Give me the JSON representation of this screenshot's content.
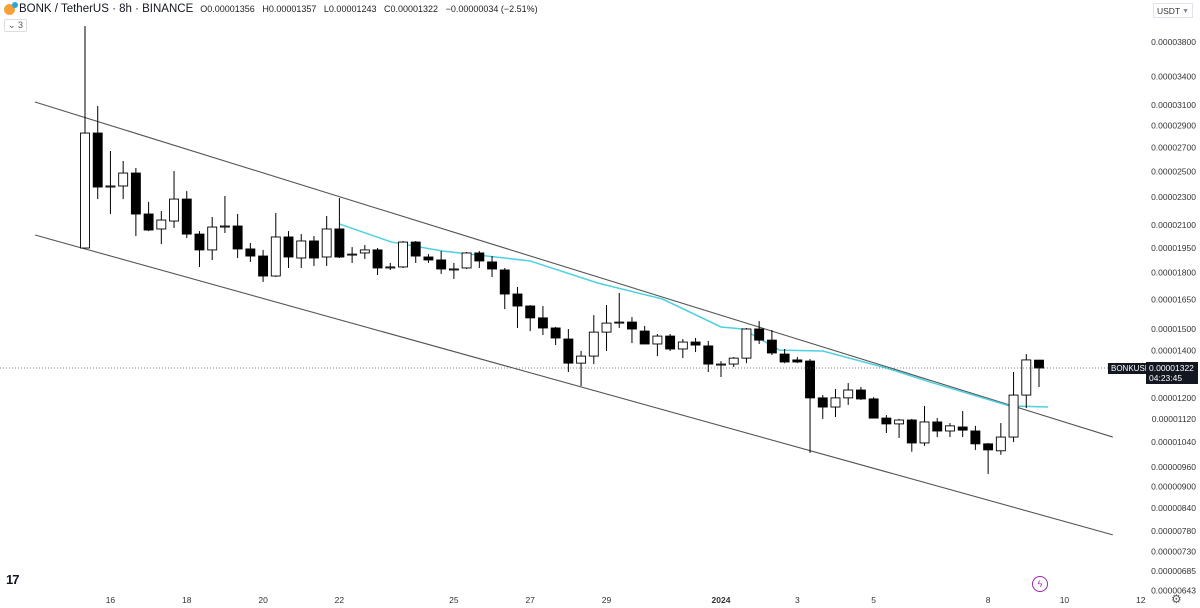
{
  "header": {
    "symbol": "BONK / TetherUS · 8h · BINANCE",
    "open": "O0.00001356",
    "high": "H0.00001357",
    "low": "L0.00001243",
    "close": "C0.00001322",
    "change": "−0.00000034 (−2.51%)",
    "indicators_collapse": "⌄ 3"
  },
  "currency_selector": {
    "value": "USDT"
  },
  "current_price": {
    "symbol": "BONKUSDT",
    "price": "0.00001322",
    "countdown": "04:23:45"
  },
  "icons": {
    "tv_logo": "tradingview-logo",
    "bolt": "lightning-icon",
    "settings": "gear-icon"
  },
  "colors": {
    "up": "#ffffff",
    "down": "#000000",
    "outline": "#000000",
    "ma": "#4dd0e1",
    "trendline": "#555555",
    "bolt": "#9c27b0"
  },
  "chart_data": {
    "type": "candlestick",
    "price_unit": "1e-8 USDT",
    "y_scale": "log",
    "ylim": [
      640,
      4100
    ],
    "candles_ohlc": [
      [
        1950,
        4003,
        1950,
        2830
      ],
      [
        2830,
        3089,
        2285,
        2376
      ],
      [
        2376,
        2670,
        2177,
        2384
      ],
      [
        2384,
        2585,
        2285,
        2486
      ],
      [
        2486,
        2527,
        2027,
        2177
      ],
      [
        2177,
        2264,
        2060,
        2067
      ],
      [
        2074,
        2198,
        1975,
        2135
      ],
      [
        2128,
        2502,
        2081,
        2285
      ],
      [
        2285,
        2345,
        2014,
        2040
      ],
      [
        2040,
        2060,
        1834,
        1938
      ],
      [
        1938,
        2156,
        1876,
        2087
      ],
      [
        2087,
        2308,
        2047,
        2094
      ],
      [
        2094,
        2177,
        1888,
        1944
      ],
      [
        1944,
        1982,
        1864,
        1900
      ],
      [
        1900,
        1938,
        1747,
        1781
      ],
      [
        1781,
        2184,
        1775,
        2021
      ],
      [
        2021,
        2060,
        1828,
        1894
      ],
      [
        1888,
        2040,
        1828,
        1995
      ],
      [
        1995,
        2027,
        1840,
        1888
      ],
      [
        1894,
        2163,
        1840,
        2074
      ],
      [
        2074,
        2293,
        1888,
        1894
      ],
      [
        1906,
        1956,
        1858,
        1912
      ],
      [
        1919,
        1969,
        1882,
        1938
      ],
      [
        1938,
        1950,
        1787,
        1828
      ],
      [
        1828,
        1858,
        1816,
        1834
      ],
      [
        1834,
        1995,
        1828,
        1988
      ],
      [
        1988,
        1995,
        1858,
        1900
      ],
      [
        1894,
        1912,
        1858,
        1876
      ],
      [
        1876,
        1931,
        1793,
        1822
      ],
      [
        1822,
        1858,
        1764,
        1822
      ],
      [
        1828,
        1925,
        1822,
        1919
      ],
      [
        1919,
        1931,
        1828,
        1870
      ],
      [
        1864,
        1900,
        1775,
        1822
      ],
      [
        1816,
        1828,
        1600,
        1680
      ],
      [
        1680,
        1719,
        1505,
        1616
      ],
      [
        1616,
        1621,
        1490,
        1555
      ],
      [
        1555,
        1616,
        1471,
        1505
      ],
      [
        1505,
        1510,
        1424,
        1457
      ],
      [
        1452,
        1500,
        1305,
        1343
      ],
      [
        1343,
        1397,
        1247,
        1374
      ],
      [
        1374,
        1569,
        1339,
        1485
      ],
      [
        1485,
        1621,
        1397,
        1529
      ],
      [
        1529,
        1686,
        1505,
        1534
      ],
      [
        1534,
        1559,
        1433,
        1500
      ],
      [
        1490,
        1515,
        1429,
        1429
      ],
      [
        1429,
        1476,
        1374,
        1466
      ],
      [
        1466,
        1476,
        1397,
        1406
      ],
      [
        1406,
        1452,
        1365,
        1438
      ],
      [
        1438,
        1457,
        1392,
        1424
      ],
      [
        1420,
        1443,
        1305,
        1339
      ],
      [
        1339,
        1352,
        1284,
        1339
      ],
      [
        1339,
        1370,
        1326,
        1365
      ],
      [
        1365,
        1505,
        1343,
        1500
      ],
      [
        1500,
        1539,
        1429,
        1447
      ],
      [
        1447,
        1495,
        1379,
        1388
      ],
      [
        1383,
        1406,
        1343,
        1348
      ],
      [
        1357,
        1370,
        1343,
        1348
      ],
      [
        1352,
        1361,
        1004,
        1200
      ],
      [
        1200,
        1211,
        1121,
        1165
      ],
      [
        1165,
        1235,
        1128,
        1200
      ],
      [
        1200,
        1259,
        1173,
        1231
      ],
      [
        1231,
        1243,
        1192,
        1196
      ],
      [
        1196,
        1203,
        1124,
        1124
      ],
      [
        1124,
        1135,
        1071,
        1103
      ],
      [
        1103,
        1121,
        1054,
        1117
      ],
      [
        1117,
        1121,
        1008,
        1037
      ],
      [
        1037,
        1169,
        1027,
        1110
      ],
      [
        1110,
        1124,
        1057,
        1078
      ],
      [
        1078,
        1106,
        1057,
        1096
      ],
      [
        1092,
        1150,
        1057,
        1081
      ],
      [
        1078,
        1096,
        1014,
        1034
      ],
      [
        1034,
        1037,
        938,
        1014
      ],
      [
        1011,
        1106,
        998,
        1057
      ],
      [
        1057,
        1305,
        1040,
        1211
      ],
      [
        1211,
        1383,
        1161,
        1357
      ],
      [
        1356,
        1357,
        1243,
        1322
      ]
    ],
    "moving_average": [
      [
        21.0,
        2108
      ],
      [
        25.1,
        1988
      ],
      [
        29.1,
        1931
      ],
      [
        36.0,
        1870
      ],
      [
        41.3,
        1741
      ],
      [
        46.4,
        1653
      ],
      [
        51.0,
        1510
      ],
      [
        52.7,
        1500
      ],
      [
        55.6,
        1401
      ],
      [
        59.0,
        1397
      ],
      [
        64.0,
        1322
      ],
      [
        67.7,
        1259
      ],
      [
        73.7,
        1169
      ],
      [
        76.7,
        1165
      ]
    ],
    "trendlines": [
      {
        "name": "upper-channel",
        "points": [
          [
            -2.93,
            3129
          ],
          [
            81.8,
            1057
          ]
        ]
      },
      {
        "name": "lower-channel",
        "points": [
          [
            -2.93,
            2034
          ],
          [
            81.8,
            770
          ]
        ]
      }
    ],
    "y_ticks": [
      "0.00003800",
      "0.00003400",
      "0.00003100",
      "0.00002900",
      "0.00002700",
      "0.00002500",
      "0.00002300",
      "0.00002100",
      "0.00001950",
      "0.00001800",
      "0.00001650",
      "0.00001500",
      "0.00001400",
      "0.00001200",
      "0.00001120",
      "0.00001040",
      "0.00000960",
      "0.00000900",
      "0.00000840",
      "0.00000780",
      "0.00000730",
      "0.00000685",
      "0.00000643"
    ],
    "x_ticks": [
      {
        "label": "16",
        "candle": 3
      },
      {
        "label": "18",
        "candle": 9
      },
      {
        "label": "20",
        "candle": 15
      },
      {
        "label": "22",
        "candle": 21
      },
      {
        "label": "25",
        "candle": 30
      },
      {
        "label": "27",
        "candle": 36
      },
      {
        "label": "29",
        "candle": 42
      },
      {
        "label": "2024",
        "candle": 51
      },
      {
        "label": "3",
        "candle": 57
      },
      {
        "label": "5",
        "candle": 63
      },
      {
        "label": "8",
        "candle": 72
      },
      {
        "label": "10",
        "candle": 78
      },
      {
        "label": "12",
        "candle": 84
      }
    ]
  }
}
